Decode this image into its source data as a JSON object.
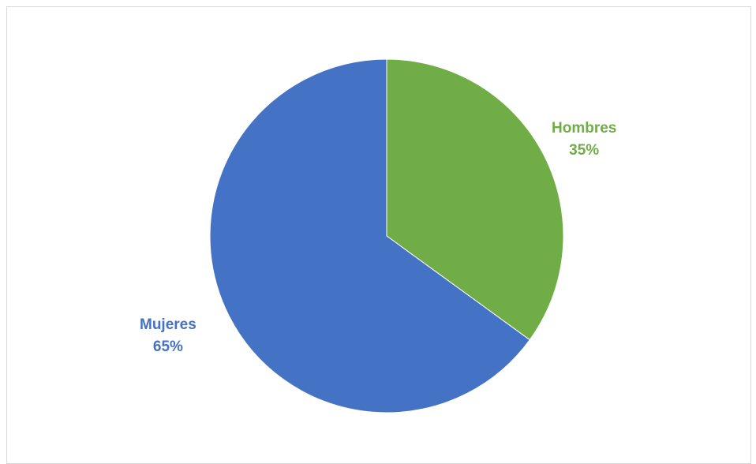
{
  "chart_data": {
    "type": "pie",
    "categories": [
      "Hombres",
      "Mujeres"
    ],
    "values": [
      35,
      65
    ],
    "value_labels": [
      "35%",
      "65%"
    ],
    "colors": [
      "#70ad47",
      "#4472c4"
    ],
    "start_angle_deg": 0,
    "direction": "clockwise",
    "data_label_colors": [
      "#70ad47",
      "#4472c4"
    ]
  }
}
